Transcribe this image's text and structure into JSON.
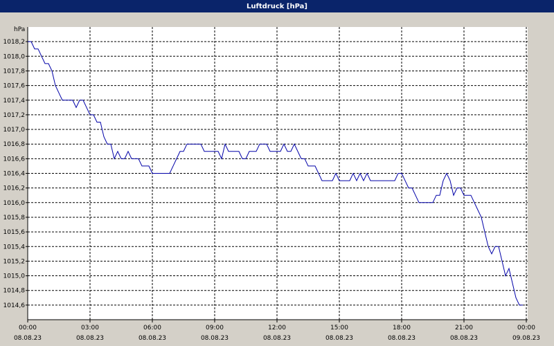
{
  "chart_data": {
    "type": "line",
    "title": "Luftdruck [hPa]",
    "y_label": "hPa",
    "color": "#0000a8",
    "grid": true,
    "x": [
      0,
      10,
      20,
      30,
      40,
      50,
      60,
      70,
      80,
      90,
      100,
      120,
      130,
      140,
      150,
      160,
      170,
      180,
      190,
      200,
      210,
      220,
      230,
      240,
      250,
      260,
      270,
      280,
      290,
      300,
      320,
      330,
      350,
      360,
      410,
      420,
      430,
      440,
      450,
      460,
      500,
      510,
      550,
      560,
      570,
      580,
      610,
      620,
      630,
      640,
      660,
      670,
      690,
      700,
      730,
      740,
      750,
      760,
      770,
      780,
      790,
      800,
      810,
      830,
      840,
      850,
      880,
      890,
      900,
      930,
      940,
      950,
      960,
      970,
      980,
      990,
      1060,
      1070,
      1080,
      1090,
      1100,
      1110,
      1120,
      1130,
      1170,
      1180,
      1190,
      1200,
      1210,
      1220,
      1230,
      1240,
      1250,
      1260,
      1280,
      1290,
      1300,
      1310,
      1320,
      1330,
      1340,
      1350,
      1360,
      1370,
      1380,
      1390,
      1400,
      1410,
      1420,
      1430
    ],
    "values": [
      1018.2,
      1018.2,
      1018.1,
      1018.1,
      1018.0,
      1017.9,
      1017.9,
      1017.8,
      1017.6,
      1017.5,
      1017.4,
      1017.4,
      1017.4,
      1017.3,
      1017.4,
      1017.4,
      1017.3,
      1017.2,
      1017.2,
      1017.1,
      1017.1,
      1016.9,
      1016.8,
      1016.8,
      1016.6,
      1016.7,
      1016.6,
      1016.6,
      1016.7,
      1016.6,
      1016.6,
      1016.5,
      1016.5,
      1016.4,
      1016.4,
      1016.5,
      1016.6,
      1016.7,
      1016.7,
      1016.8,
      1016.8,
      1016.7,
      1016.7,
      1016.6,
      1016.8,
      1016.7,
      1016.7,
      1016.6,
      1016.6,
      1016.7,
      1016.7,
      1016.8,
      1016.8,
      1016.7,
      1016.7,
      1016.8,
      1016.7,
      1016.7,
      1016.8,
      1016.7,
      1016.6,
      1016.6,
      1016.5,
      1016.5,
      1016.4,
      1016.3,
      1016.3,
      1016.4,
      1016.3,
      1016.3,
      1016.4,
      1016.3,
      1016.4,
      1016.3,
      1016.4,
      1016.3,
      1016.3,
      1016.4,
      1016.4,
      1016.3,
      1016.2,
      1016.2,
      1016.1,
      1016.0,
      1016.0,
      1016.1,
      1016.1,
      1016.3,
      1016.4,
      1016.3,
      1016.1,
      1016.2,
      1016.2,
      1016.1,
      1016.1,
      1016.0,
      1015.9,
      1015.8,
      1015.6,
      1015.4,
      1015.3,
      1015.4,
      1015.4,
      1015.2,
      1015.0,
      1015.1,
      1014.9,
      1014.7,
      1014.6,
      1014.6
    ],
    "xlim": [
      0,
      1440
    ],
    "xticks": [
      {
        "value": 0,
        "label": "00:00"
      },
      {
        "value": 180,
        "label": "03:00"
      },
      {
        "value": 360,
        "label": "06:00"
      },
      {
        "value": 540,
        "label": "09:00"
      },
      {
        "value": 720,
        "label": "12:00"
      },
      {
        "value": 900,
        "label": "15:00"
      },
      {
        "value": 1080,
        "label": "18:00"
      },
      {
        "value": 1260,
        "label": "21:00"
      },
      {
        "value": 1440,
        "label": "00:00"
      }
    ],
    "xtick_dates": [
      "08.08.23",
      "08.08.23",
      "08.08.23",
      "08.08.23",
      "08.08.23",
      "08.08.23",
      "08.08.23",
      "08.08.23",
      "09.08.23"
    ],
    "ylim": [
      1014.4,
      1018.4
    ],
    "yticks": [
      {
        "value": 1014.6,
        "label": "1014,6"
      },
      {
        "value": 1014.8,
        "label": "1014,8"
      },
      {
        "value": 1015.0,
        "label": "1015,0"
      },
      {
        "value": 1015.2,
        "label": "1015,2"
      },
      {
        "value": 1015.4,
        "label": "1015,4"
      },
      {
        "value": 1015.6,
        "label": "1015,6"
      },
      {
        "value": 1015.8,
        "label": "1015,8"
      },
      {
        "value": 1016.0,
        "label": "1016,0"
      },
      {
        "value": 1016.2,
        "label": "1016,2"
      },
      {
        "value": 1016.4,
        "label": "1016,4"
      },
      {
        "value": 1016.6,
        "label": "1016,6"
      },
      {
        "value": 1016.8,
        "label": "1016,8"
      },
      {
        "value": 1017.0,
        "label": "1017,0"
      },
      {
        "value": 1017.2,
        "label": "1017,2"
      },
      {
        "value": 1017.4,
        "label": "1017,4"
      },
      {
        "value": 1017.6,
        "label": "1017,6"
      },
      {
        "value": 1017.8,
        "label": "1017,8"
      },
      {
        "value": 1018.0,
        "label": "1018,0"
      },
      {
        "value": 1018.2,
        "label": "1018,2"
      }
    ]
  }
}
